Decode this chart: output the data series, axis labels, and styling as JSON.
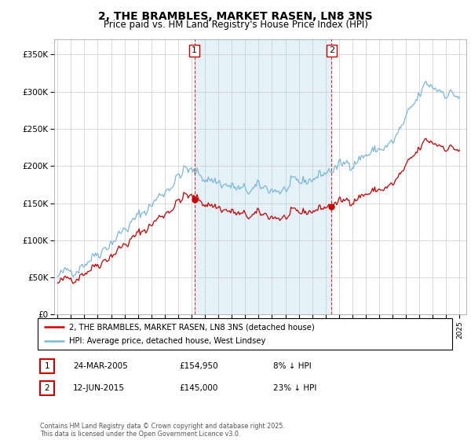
{
  "title": "2, THE BRAMBLES, MARKET RASEN, LN8 3NS",
  "subtitle": "Price paid vs. HM Land Registry's House Price Index (HPI)",
  "title_fontsize": 10,
  "subtitle_fontsize": 8.5,
  "hpi_color": "#7ab8d9",
  "price_color": "#cc0000",
  "vline_color": "#cc0000",
  "shade_color": "#d9ecf7",
  "grid_color": "#cccccc",
  "background_color": "#ffffff",
  "sale1_date": 2005.22,
  "sale1_price": 154950,
  "sale2_date": 2015.44,
  "sale2_price": 145000,
  "legend_label_price": "2, THE BRAMBLES, MARKET RASEN, LN8 3NS (detached house)",
  "legend_label_hpi": "HPI: Average price, detached house, West Lindsey",
  "table_row1": [
    "1",
    "24-MAR-2005",
    "£154,950",
    "8% ↓ HPI"
  ],
  "table_row2": [
    "2",
    "12-JUN-2015",
    "£145,000",
    "23% ↓ HPI"
  ],
  "copyright_text": "Contains HM Land Registry data © Crown copyright and database right 2025.\nThis data is licensed under the Open Government Licence v3.0.",
  "ylim": [
    0,
    370000
  ],
  "yticks": [
    0,
    50000,
    100000,
    150000,
    200000,
    250000,
    300000,
    350000
  ],
  "ytick_labels": [
    "£0",
    "£50K",
    "£100K",
    "£150K",
    "£200K",
    "£250K",
    "£300K",
    "£350K"
  ],
  "xlim_left": 1994.75,
  "xlim_right": 2025.5
}
